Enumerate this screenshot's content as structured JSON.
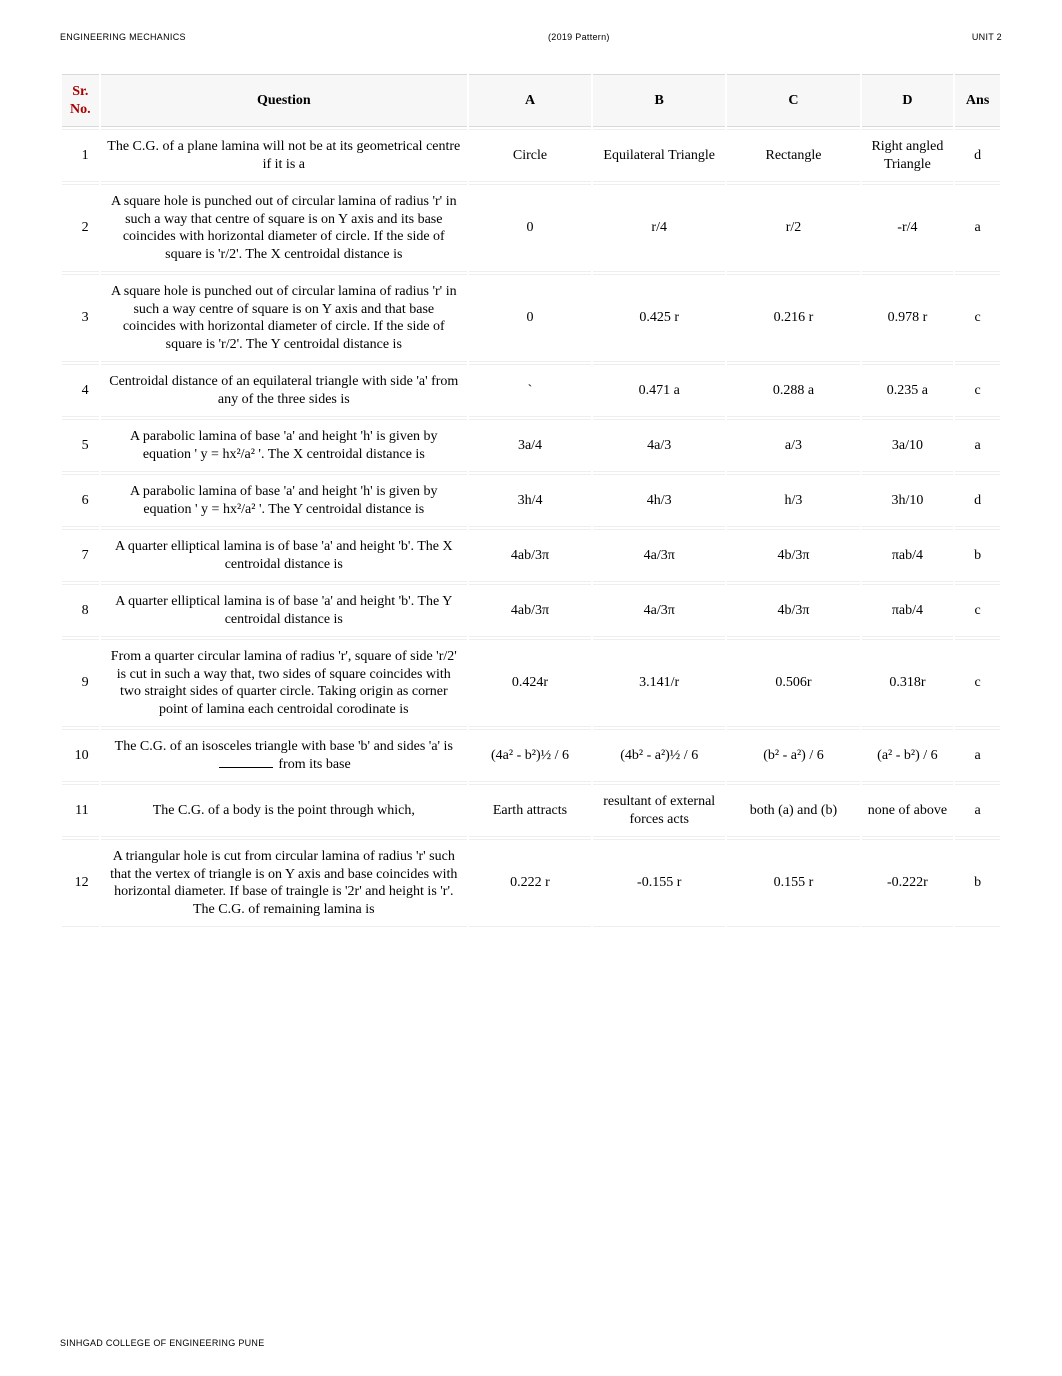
{
  "header": {
    "left": "ENGINEERING MECHANICS",
    "center": "(2019 Pattern)",
    "right": "UNIT 2"
  },
  "footer": "SINHGAD COLLEGE OF ENGINEERING PUNE",
  "columns": {
    "sr": "Sr. No.",
    "q": "Question",
    "a": "A",
    "b": "B",
    "c": "C",
    "d": "D",
    "ans": "Ans"
  },
  "rows": [
    {
      "sr": "1",
      "q": "The C.G. of a plane lamina will not be at its geometrical centre if it is a",
      "a": "Circle",
      "b": "Equilateral Triangle",
      "c": "Rectangle",
      "d": "Right angled Triangle",
      "ans": "d"
    },
    {
      "sr": "2",
      "q": "A square hole is punched out of circular lamina of radius 'r' in such a way that centre of square is on Y axis and its base coincides with horizontal diameter of circle. If the side of square is 'r/2'. The X centroidal distance is",
      "a": "0",
      "b": "r/4",
      "c": "r/2",
      "d": "-r/4",
      "ans": "a"
    },
    {
      "sr": "3",
      "q": "A square hole is punched out of circular lamina of radius 'r' in such a way centre of square is on Y axis and that base coincides with horizontal diameter of circle. If the side of square is 'r/2'. The Y centroidal distance is",
      "a": "0",
      "b": "0.425 r",
      "c": "0.216 r",
      "d": "0.978 r",
      "ans": "c"
    },
    {
      "sr": "4",
      "q": "Centroidal distance of an equilateral triangle with side 'a' from any of the three sides is",
      "a": "`",
      "b": "0.471 a",
      "c": "0.288 a",
      "d": "0.235 a",
      "ans": "c"
    },
    {
      "sr": "5",
      "q": "A parabolic lamina of base 'a' and height 'h' is given by equation ' y = hx²/a² '. The X centroidal distance is",
      "a": "3a/4",
      "b": "4a/3",
      "c": "a/3",
      "d": "3a/10",
      "ans": "a"
    },
    {
      "sr": "6",
      "q": "A parabolic lamina of base 'a' and height 'h' is given by equation ' y = hx²/a² '. The Y centroidal distance is",
      "a": "3h/4",
      "b": "4h/3",
      "c": "h/3",
      "d": "3h/10",
      "ans": "d"
    },
    {
      "sr": "7",
      "q": "A quarter elliptical lamina is of base 'a' and height 'b'. The X centroidal distance is",
      "a": "4ab/3π",
      "b": "4a/3π",
      "c": "4b/3π",
      "d": "πab/4",
      "ans": "b"
    },
    {
      "sr": "8",
      "q": "A quarter elliptical lamina is of base 'a' and height 'b'. The Y centroidal distance is",
      "a": "4ab/3π",
      "b": "4a/3π",
      "c": "4b/3π",
      "d": "πab/4",
      "ans": "c"
    },
    {
      "sr": "9",
      "q": "From a quarter circular lamina of radius 'r', square of side 'r/2' is cut in such a way that, two sides of square coincides with two straight sides of quarter circle. Taking origin as corner point of lamina each centroidal corodinate is",
      "a": "0.424r",
      "b": "3.141/r",
      "c": "0.506r",
      "d": "0.318r",
      "ans": "c"
    },
    {
      "sr": "10",
      "q": "The C.G. of an isosceles triangle with base 'b' and sides 'a' is ________ from its base",
      "a": "(4a² - b²)½ / 6",
      "b": "(4b² - a²)½ / 6",
      "c": "(b² - a²) / 6",
      "d": "(a² - b²) / 6",
      "ans": "a"
    },
    {
      "sr": "11",
      "q": "The C.G. of a body is the point through which,",
      "a": "Earth attracts",
      "b": "resultant of external forces acts",
      "c": "both (a) and (b)",
      "d": "none of above",
      "ans": "a"
    },
    {
      "sr": "12",
      "q": "A triangular hole is cut from circular lamina of radius 'r' such that the vertex of triangle is on Y axis and base coincides with horizontal diameter. If base of traingle is '2r' and height is 'r'. The C.G. of remaining lamina is",
      "a": "0.222 r",
      "b": "-0.155 r",
      "c": "0.155 r",
      "d": "-0.222r",
      "ans": "b"
    }
  ]
}
